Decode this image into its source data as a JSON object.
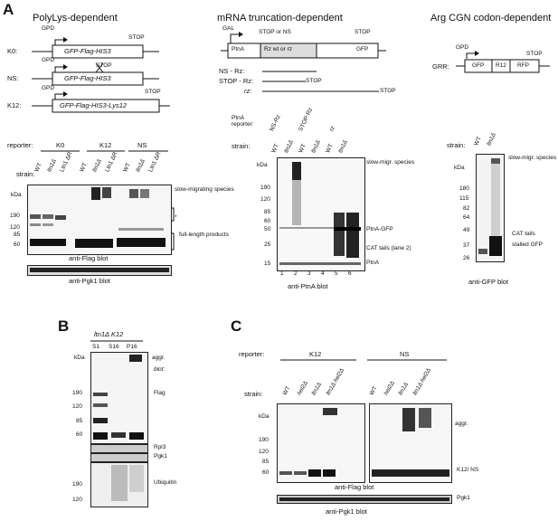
{
  "panelA": {
    "letter": "A",
    "polylys": {
      "title": "PolyLys-dependent",
      "gpd": "GPD",
      "stop": "STOP",
      "constructs": [
        {
          "name": "K0:",
          "gene": "GFP-Flag-HIS3"
        },
        {
          "name": "NS:",
          "gene": "GFP-Flag-HIS3"
        },
        {
          "name": "K12:",
          "gene": "GFP-Flag-HIS3-Lys12"
        }
      ],
      "reporter_label": "reporter:",
      "reporter_groups": [
        "K0",
        "K12",
        "NS"
      ],
      "strain_label": "strain:",
      "strains": [
        "WT",
        "ltn1Δ",
        "Ltn1 ΔR",
        "WT",
        "ltn1Δ",
        "Ltn1 ΔR",
        "WT",
        "ltn1Δ",
        "Ltn1 ΔR"
      ],
      "kda": "kDa",
      "markers": [
        "190",
        "120",
        "85",
        "60"
      ],
      "annotations": [
        "slow-migrating species",
        "*",
        "full-length products"
      ],
      "blot1": "anti-Flag blot",
      "blot2": "anti-Pgk1 blot"
    },
    "mrna": {
      "title": "mRNA truncation-dependent",
      "gal": "GAL",
      "stop_or_ns": "STOP or NS",
      "stop": "STOP",
      "boxes": [
        "PtnA",
        "Rz wt or rz",
        "GFP"
      ],
      "lines": [
        "NS - Rz:",
        "STOP - Rz:",
        "rz:"
      ],
      "stop_small": "STOP",
      "ptna_reporter": "PtnA reporter:",
      "reporters": [
        "NS-Rz",
        "STOP-Rz",
        "rz"
      ],
      "strain_label": "strain:",
      "strains": [
        "WT",
        "ltn1Δ",
        "WT",
        "ltn1Δ",
        "WT",
        "ltn1Δ"
      ],
      "kda": "kDa",
      "markers": [
        "190",
        "120",
        "85",
        "60",
        "50",
        "25",
        "15"
      ],
      "annotations": [
        "slow-migr. species",
        "PtnA-GFP",
        "CAT tails (lane 2)",
        "PtnA"
      ],
      "lanes": [
        "1",
        "2",
        "3",
        "4",
        "5",
        "6"
      ],
      "blot": "anti-PtnA blot"
    },
    "arg": {
      "title": "Arg CGN codon-dependent",
      "gpd": "GPD",
      "stop": "STOP",
      "construct": "GRR:",
      "boxes": [
        "GFP",
        "R12",
        "RFP"
      ],
      "strain_label": "strain:",
      "strains": [
        "WT",
        "ltn1Δ"
      ],
      "kda": "kDa",
      "markers": [
        "180",
        "115",
        "82",
        "64",
        "49",
        "37",
        "26"
      ],
      "annotations": [
        "slow-migr. species",
        "CAT tails",
        "stalled GFP"
      ],
      "blot": "anti-GFP blot"
    }
  },
  "panelB": {
    "letter": "B",
    "header": "ltn1Δ K12",
    "fractions": [
      "S1",
      "S16",
      "P16"
    ],
    "kda": "kDa",
    "aggr": "aggr.",
    "blot_label": "blot:",
    "markers_top": [
      "190",
      "120",
      "85",
      "60"
    ],
    "markers_ub": [
      "190",
      "120"
    ],
    "blots": [
      "Flag",
      "Rpl3",
      "Pgk1",
      "Ubiquitin"
    ]
  },
  "panelC": {
    "letter": "C",
    "reporter_label": "reporter:",
    "reporters": [
      "K12",
      "NS"
    ],
    "strain_label": "strain:",
    "strains": [
      "WT",
      "hel2Δ",
      "ltn1Δ",
      "ltn1Δ hel2Δ",
      "WT",
      "hel2Δ",
      "ltn1Δ",
      "ltn1Δ hel2Δ"
    ],
    "kda": "kDa",
    "markers": [
      "190",
      "120",
      "85",
      "60"
    ],
    "annotations": [
      "aggr.",
      "K12/ NS",
      "Pgk1"
    ],
    "blot1": "anti-Flag blot",
    "blot2": "anti-Pgk1 blot"
  }
}
